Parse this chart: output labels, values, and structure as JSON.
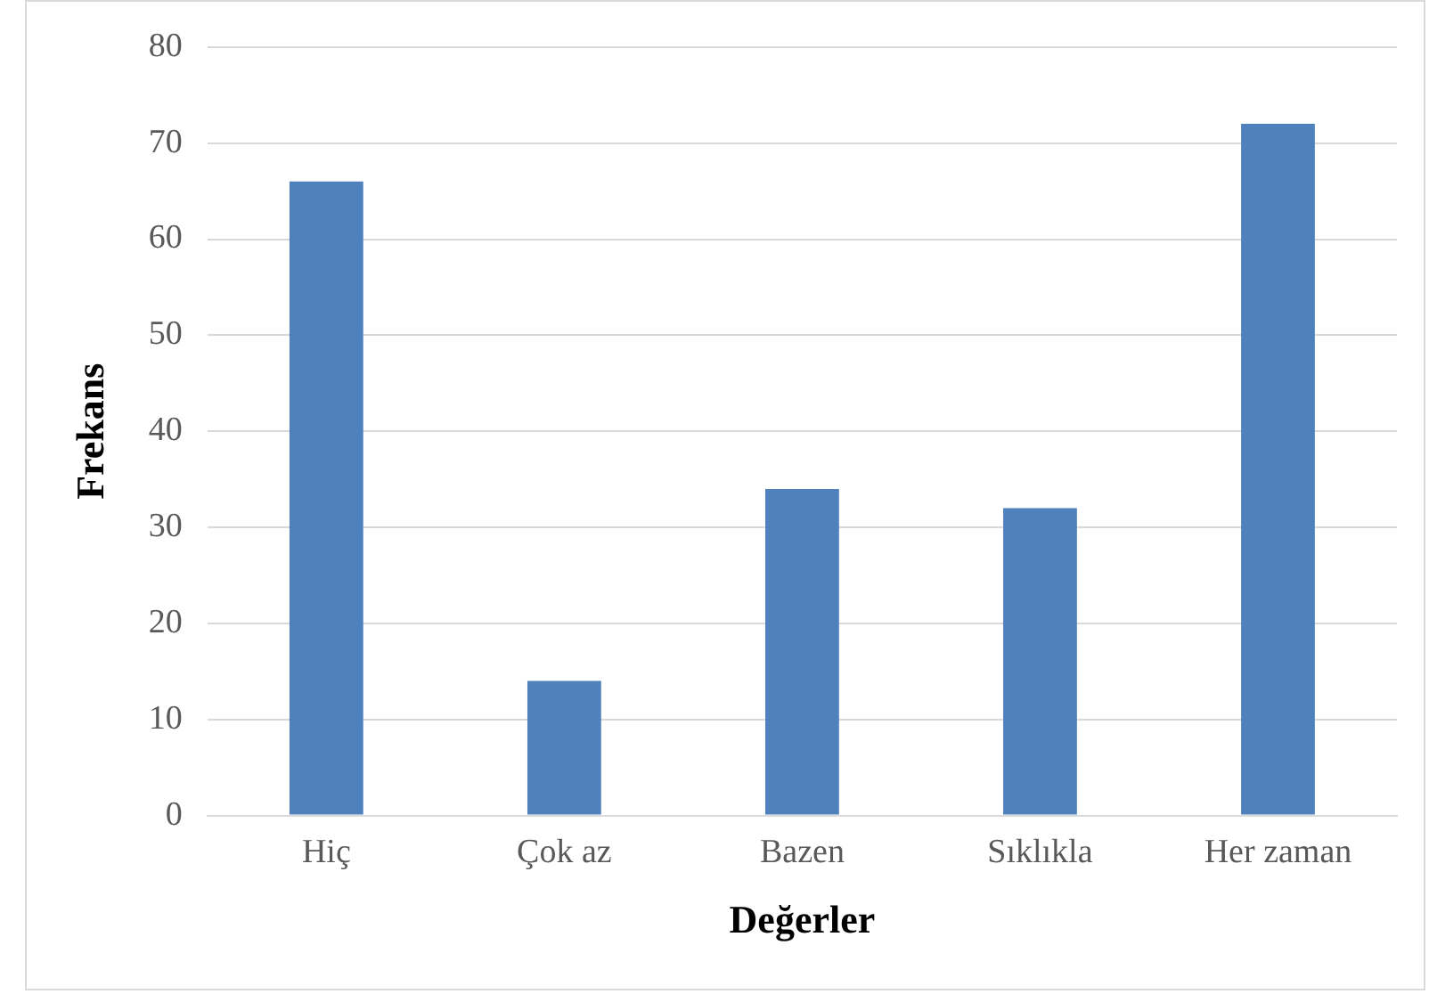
{
  "chart_data": {
    "type": "bar",
    "xlabel": "Değerler",
    "ylabel": "Frekans",
    "categories": [
      "Hiç",
      "Çok az",
      "Bazen",
      "Sıklıkla",
      "Her zaman"
    ],
    "values": [
      66,
      14,
      34,
      32,
      72
    ],
    "color": "#4f81bd",
    "ylim": [
      0,
      80
    ],
    "yticks": [
      0,
      10,
      20,
      30,
      40,
      50,
      60,
      70,
      80
    ],
    "grid": "y",
    "legend": false
  }
}
